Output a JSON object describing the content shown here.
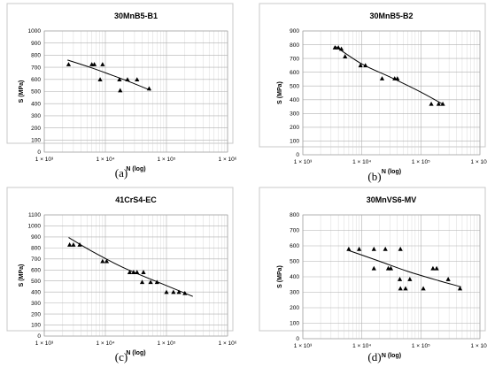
{
  "chart_data": [
    {
      "type": "scatter",
      "title": "30MnB5-B1",
      "xlabel": "N (log)",
      "ylabel": "S (MPa)",
      "xscale": "log",
      "xlim": [
        1000,
        1000000
      ],
      "ylim": [
        0,
        1000
      ],
      "yticks": [
        "0",
        "100",
        "200",
        "300",
        "400",
        "500",
        "600",
        "700",
        "800",
        "900",
        "1000"
      ],
      "xticks": [
        "1 × 10³",
        "1 × 10⁴",
        "1 × 10⁵",
        "1 × 10⁶"
      ],
      "caption": "(a)",
      "points": [
        {
          "x": 2500,
          "y": 725
        },
        {
          "x": 6000,
          "y": 725
        },
        {
          "x": 6600,
          "y": 725
        },
        {
          "x": 9000,
          "y": 725
        },
        {
          "x": 8200,
          "y": 600
        },
        {
          "x": 17000,
          "y": 600
        },
        {
          "x": 17500,
          "y": 510
        },
        {
          "x": 23000,
          "y": 600
        },
        {
          "x": 33000,
          "y": 600
        },
        {
          "x": 52000,
          "y": 525
        }
      ],
      "trend": [
        {
          "x": 2400,
          "y": 760
        },
        {
          "x": 6000,
          "y": 695
        },
        {
          "x": 12000,
          "y": 640
        },
        {
          "x": 25000,
          "y": 580
        },
        {
          "x": 55000,
          "y": 510
        }
      ]
    },
    {
      "type": "scatter",
      "title": "30MnB5-B2",
      "xlabel": "N (log)",
      "ylabel": "S (MPa)",
      "xscale": "log",
      "xlim": [
        1000,
        1000000
      ],
      "ylim": [
        0,
        900
      ],
      "yticks": [
        "0",
        "100",
        "200",
        "300",
        "400",
        "500",
        "600",
        "700",
        "800",
        "900"
      ],
      "xticks": [
        "1 × 10³",
        "1 × 10⁴",
        "1 × 10⁵",
        "1 × 10⁶"
      ],
      "caption": "(b)",
      "points": [
        {
          "x": 3500,
          "y": 780
        },
        {
          "x": 4000,
          "y": 780
        },
        {
          "x": 4500,
          "y": 770
        },
        {
          "x": 5200,
          "y": 715
        },
        {
          "x": 9500,
          "y": 650
        },
        {
          "x": 11500,
          "y": 650
        },
        {
          "x": 22000,
          "y": 555
        },
        {
          "x": 36000,
          "y": 555
        },
        {
          "x": 40000,
          "y": 555
        },
        {
          "x": 150000,
          "y": 370
        },
        {
          "x": 200000,
          "y": 370
        },
        {
          "x": 235000,
          "y": 370
        }
      ],
      "trend": [
        {
          "x": 3500,
          "y": 790
        },
        {
          "x": 10000,
          "y": 660
        },
        {
          "x": 30000,
          "y": 565
        },
        {
          "x": 100000,
          "y": 455
        },
        {
          "x": 240000,
          "y": 365
        }
      ]
    },
    {
      "type": "scatter",
      "title": "41CrS4-EC",
      "xlabel": "N (log)",
      "ylabel": "S (MPa)",
      "xscale": "log",
      "xlim": [
        1000,
        1000000
      ],
      "ylim": [
        0,
        1100
      ],
      "yticks": [
        "0",
        "100",
        "200",
        "300",
        "400",
        "500",
        "600",
        "700",
        "800",
        "900",
        "1000",
        "1100"
      ],
      "xticks": [
        "1 × 10³",
        "1 × 10⁴",
        "1 × 10⁵",
        "1 × 10⁶"
      ],
      "caption": "(c)",
      "points": [
        {
          "x": 2600,
          "y": 830
        },
        {
          "x": 3000,
          "y": 830
        },
        {
          "x": 3800,
          "y": 830
        },
        {
          "x": 9000,
          "y": 680
        },
        {
          "x": 10500,
          "y": 680
        },
        {
          "x": 25000,
          "y": 580
        },
        {
          "x": 29000,
          "y": 580
        },
        {
          "x": 33000,
          "y": 580
        },
        {
          "x": 42000,
          "y": 580
        },
        {
          "x": 40000,
          "y": 490
        },
        {
          "x": 55000,
          "y": 490
        },
        {
          "x": 70000,
          "y": 490
        },
        {
          "x": 100000,
          "y": 400
        },
        {
          "x": 130000,
          "y": 400
        },
        {
          "x": 160000,
          "y": 400
        },
        {
          "x": 200000,
          "y": 390
        }
      ],
      "trend": [
        {
          "x": 2500,
          "y": 895
        },
        {
          "x": 6000,
          "y": 770
        },
        {
          "x": 20000,
          "y": 620
        },
        {
          "x": 80000,
          "y": 480
        },
        {
          "x": 270000,
          "y": 360
        }
      ]
    },
    {
      "type": "scatter",
      "title": "30MnVS6-MV",
      "xlabel": "N (log)",
      "ylabel": "S (MPa)",
      "xscale": "log",
      "xlim": [
        1000,
        1000000
      ],
      "ylim": [
        0,
        800
      ],
      "yticks": [
        "0",
        "100",
        "200",
        "300",
        "400",
        "500",
        "600",
        "700",
        "800"
      ],
      "xticks": [
        "1 × 10³",
        "1 × 10⁴",
        "1 × 10⁵",
        "1 × 10⁶"
      ],
      "caption": "(d)",
      "points": [
        {
          "x": 6000,
          "y": 580
        },
        {
          "x": 9000,
          "y": 580
        },
        {
          "x": 16000,
          "y": 580
        },
        {
          "x": 25000,
          "y": 580
        },
        {
          "x": 45000,
          "y": 580
        },
        {
          "x": 16000,
          "y": 455
        },
        {
          "x": 28000,
          "y": 455
        },
        {
          "x": 31000,
          "y": 455
        },
        {
          "x": 44000,
          "y": 385
        },
        {
          "x": 65000,
          "y": 385
        },
        {
          "x": 45000,
          "y": 325
        },
        {
          "x": 55000,
          "y": 325
        },
        {
          "x": 110000,
          "y": 325
        },
        {
          "x": 160000,
          "y": 455
        },
        {
          "x": 185000,
          "y": 455
        },
        {
          "x": 290000,
          "y": 385
        },
        {
          "x": 460000,
          "y": 325
        }
      ],
      "trend": [
        {
          "x": 6000,
          "y": 570
        },
        {
          "x": 20000,
          "y": 500
        },
        {
          "x": 60000,
          "y": 435
        },
        {
          "x": 200000,
          "y": 375
        },
        {
          "x": 480000,
          "y": 335
        }
      ]
    }
  ]
}
